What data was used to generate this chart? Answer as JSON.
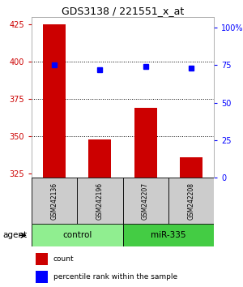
{
  "title": "GDS3138 / 221551_x_at",
  "samples": [
    "GSM242136",
    "GSM242196",
    "GSM242207",
    "GSM242208"
  ],
  "counts": [
    425,
    348,
    369,
    336
  ],
  "percentiles": [
    75,
    72,
    74,
    73
  ],
  "baseline": 322,
  "left_ylim": [
    322,
    430
  ],
  "left_yticks": [
    325,
    350,
    375,
    400,
    425
  ],
  "right_ylim": [
    0,
    106.67
  ],
  "right_yticks": [
    0,
    25,
    50,
    75,
    100
  ],
  "right_yticklabels": [
    "0",
    "25",
    "50",
    "75",
    "100%"
  ],
  "groups": [
    {
      "label": "control",
      "samples": [
        0,
        1
      ],
      "color": "#90ee90"
    },
    {
      "label": "miR-335",
      "samples": [
        2,
        3
      ],
      "color": "#44cc44"
    }
  ],
  "agent_label": "agent",
  "bar_color": "#cc0000",
  "dot_color": "#0000ff",
  "left_tick_color": "#cc0000",
  "right_tick_color": "#0000ff",
  "grid_color": "#000000",
  "sample_box_color": "#cccccc",
  "bar_width": 0.5,
  "legend_labels": [
    "count",
    "percentile rank within the sample"
  ]
}
